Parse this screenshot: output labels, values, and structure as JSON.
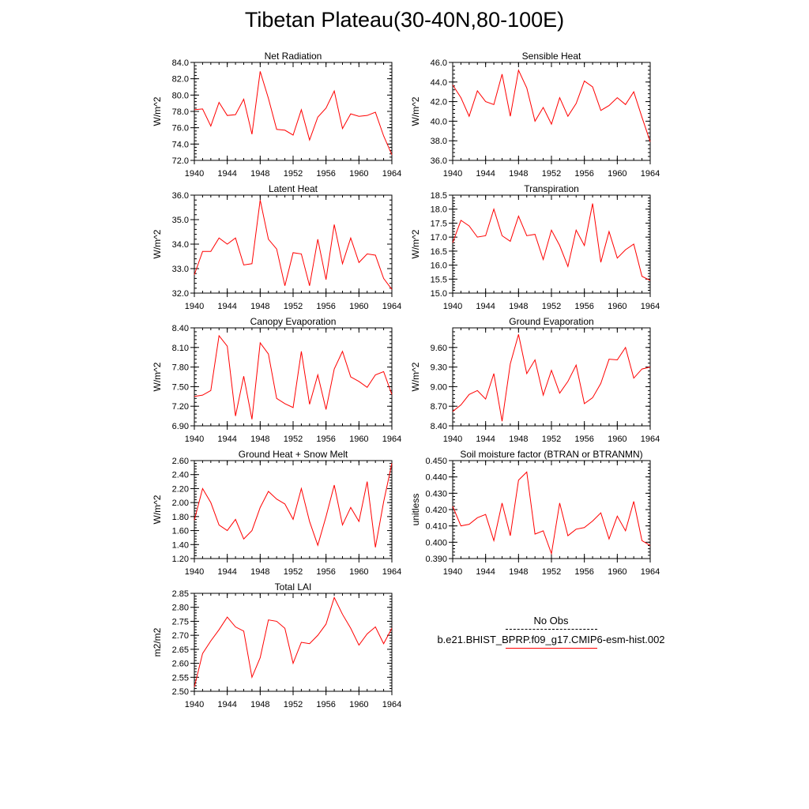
{
  "title": "Tibetan Plateau(30-40N,80-100E)",
  "legend": {
    "obs_label": "No Obs",
    "model_label": "b.e21.BHIST_BPRP.f09_g17.CMIP6-esm-hist.002",
    "obs_color": "#000000",
    "model_color": "#ff0000"
  },
  "chart_data": [
    {
      "type": "line",
      "title": "Net Radiation",
      "ylabel": "W/m^2",
      "ylim": [
        72.0,
        84.0
      ],
      "yticks": [
        "72.0",
        "74.0",
        "76.0",
        "78.0",
        "80.0",
        "82.0",
        "84.0"
      ],
      "xlim": [
        1940,
        1964
      ],
      "xticks": [
        "1940",
        "1944",
        "1948",
        "1952",
        "1956",
        "1960",
        "1964"
      ],
      "x": [
        1940,
        1941,
        1942,
        1943,
        1944,
        1945,
        1946,
        1947,
        1948,
        1949,
        1950,
        1951,
        1952,
        1953,
        1954,
        1955,
        1956,
        1957,
        1958,
        1959,
        1960,
        1961,
        1962,
        1963,
        1964
      ],
      "values": [
        78.2,
        78.3,
        76.2,
        79.1,
        77.5,
        77.6,
        79.5,
        75.2,
        82.9,
        79.6,
        75.8,
        75.7,
        75.1,
        78.2,
        74.5,
        77.3,
        78.4,
        80.5,
        75.9,
        77.7,
        77.4,
        77.5,
        77.9,
        75.0,
        72.7
      ]
    },
    {
      "type": "line",
      "title": "Sensible Heat",
      "ylabel": "W/m^2",
      "ylim": [
        36.0,
        46.0
      ],
      "yticks": [
        "36.0",
        "38.0",
        "40.0",
        "42.0",
        "44.0",
        "46.0"
      ],
      "xlim": [
        1940,
        1964
      ],
      "xticks": [
        "1940",
        "1944",
        "1948",
        "1952",
        "1956",
        "1960",
        "1964"
      ],
      "x": [
        1940,
        1941,
        1942,
        1943,
        1944,
        1945,
        1946,
        1947,
        1948,
        1949,
        1950,
        1951,
        1952,
        1953,
        1954,
        1955,
        1956,
        1957,
        1958,
        1959,
        1960,
        1961,
        1962,
        1963,
        1964
      ],
      "values": [
        43.7,
        42.4,
        40.5,
        43.1,
        42.0,
        41.7,
        44.8,
        40.5,
        45.2,
        43.4,
        40.0,
        41.4,
        39.7,
        42.4,
        40.5,
        41.8,
        44.1,
        43.5,
        41.1,
        41.6,
        42.4,
        41.7,
        43.0,
        40.4,
        37.9
      ]
    },
    {
      "type": "line",
      "title": "Latent Heat",
      "ylabel": "W/m^2",
      "ylim": [
        32.0,
        36.0
      ],
      "yticks": [
        "32.0",
        "33.0",
        "34.0",
        "35.0",
        "36.0"
      ],
      "xlim": [
        1940,
        1964
      ],
      "xticks": [
        "1940",
        "1944",
        "1948",
        "1952",
        "1956",
        "1960",
        "1964"
      ],
      "x": [
        1940,
        1941,
        1942,
        1943,
        1944,
        1945,
        1946,
        1947,
        1948,
        1949,
        1950,
        1951,
        1952,
        1953,
        1954,
        1955,
        1956,
        1957,
        1958,
        1959,
        1960,
        1961,
        1962,
        1963,
        1964
      ],
      "values": [
        32.75,
        33.7,
        33.7,
        34.25,
        34.0,
        34.25,
        33.15,
        33.2,
        35.8,
        34.2,
        33.8,
        32.3,
        33.65,
        33.6,
        32.3,
        34.2,
        32.55,
        34.8,
        33.2,
        34.25,
        33.25,
        33.6,
        33.55,
        32.6,
        32.15
      ]
    },
    {
      "type": "line",
      "title": "Transpiration",
      "ylabel": "W/m^2",
      "ylim": [
        15.0,
        18.5
      ],
      "yticks": [
        "15.0",
        "15.5",
        "16.0",
        "16.5",
        "17.0",
        "17.5",
        "18.0",
        "18.5"
      ],
      "xlim": [
        1940,
        1964
      ],
      "xticks": [
        "1940",
        "1944",
        "1948",
        "1952",
        "1956",
        "1960",
        "1964"
      ],
      "x": [
        1940,
        1941,
        1942,
        1943,
        1944,
        1945,
        1946,
        1947,
        1948,
        1949,
        1950,
        1951,
        1952,
        1953,
        1954,
        1955,
        1956,
        1957,
        1958,
        1959,
        1960,
        1961,
        1962,
        1963,
        1964
      ],
      "values": [
        16.8,
        17.6,
        17.4,
        17.0,
        17.05,
        18.0,
        17.05,
        16.85,
        17.75,
        17.05,
        17.1,
        16.2,
        17.25,
        16.7,
        15.95,
        17.25,
        16.7,
        18.2,
        16.1,
        17.2,
        16.25,
        16.55,
        16.75,
        15.6,
        15.45
      ]
    },
    {
      "type": "line",
      "title": "Canopy Evaporation",
      "ylabel": "W/m^2",
      "ylim": [
        6.9,
        8.4
      ],
      "yticks": [
        "6.90",
        "7.20",
        "7.50",
        "7.80",
        "8.10",
        "8.40"
      ],
      "xlim": [
        1940,
        1964
      ],
      "xticks": [
        "1940",
        "1944",
        "1948",
        "1952",
        "1956",
        "1960",
        "1964"
      ],
      "x": [
        1940,
        1941,
        1942,
        1943,
        1944,
        1945,
        1946,
        1947,
        1948,
        1949,
        1950,
        1951,
        1952,
        1953,
        1954,
        1955,
        1956,
        1957,
        1958,
        1959,
        1960,
        1961,
        1962,
        1963,
        1964
      ],
      "values": [
        7.35,
        7.37,
        7.44,
        8.28,
        8.12,
        7.05,
        7.66,
        7.0,
        8.17,
        8.0,
        7.32,
        7.24,
        7.18,
        8.04,
        7.23,
        7.68,
        7.15,
        7.77,
        8.04,
        7.65,
        7.58,
        7.49,
        7.68,
        7.73,
        7.38
      ]
    },
    {
      "type": "line",
      "title": "Ground Evaporation",
      "ylabel": "W/m^2",
      "ylim": [
        8.4,
        9.9
      ],
      "yticks": [
        "8.40",
        "8.70",
        "9.00",
        "9.30",
        "9.60"
      ],
      "xlim": [
        1940,
        1964
      ],
      "xticks": [
        "1940",
        "1944",
        "1948",
        "1952",
        "1956",
        "1960",
        "1964"
      ],
      "x": [
        1940,
        1941,
        1942,
        1943,
        1944,
        1945,
        1946,
        1947,
        1948,
        1949,
        1950,
        1951,
        1952,
        1953,
        1954,
        1955,
        1956,
        1957,
        1958,
        1959,
        1960,
        1961,
        1962,
        1963,
        1964
      ],
      "values": [
        8.62,
        8.72,
        8.88,
        8.94,
        8.81,
        9.2,
        8.47,
        9.35,
        9.8,
        9.2,
        9.41,
        8.87,
        9.25,
        8.9,
        9.08,
        9.33,
        8.74,
        8.83,
        9.05,
        9.42,
        9.41,
        9.6,
        9.13,
        9.27,
        9.3
      ]
    },
    {
      "type": "line",
      "title": "Ground Heat + Snow Melt",
      "ylabel": "W/m^2",
      "ylim": [
        1.2,
        2.6
      ],
      "yticks": [
        "1.20",
        "1.40",
        "1.60",
        "1.80",
        "2.00",
        "2.20",
        "2.40",
        "2.60"
      ],
      "xlim": [
        1940,
        1964
      ],
      "xticks": [
        "1940",
        "1944",
        "1948",
        "1952",
        "1956",
        "1960",
        "1964"
      ],
      "x": [
        1940,
        1941,
        1942,
        1943,
        1944,
        1945,
        1946,
        1947,
        1948,
        1949,
        1950,
        1951,
        1952,
        1953,
        1954,
        1955,
        1956,
        1957,
        1958,
        1959,
        1960,
        1961,
        1962,
        1963,
        1964
      ],
      "values": [
        1.75,
        2.2,
        2.0,
        1.68,
        1.6,
        1.76,
        1.48,
        1.6,
        1.93,
        2.16,
        2.05,
        1.98,
        1.76,
        2.2,
        1.73,
        1.39,
        1.8,
        2.25,
        1.68,
        1.93,
        1.73,
        2.3,
        1.36,
        2.01,
        2.56
      ]
    },
    {
      "type": "line",
      "title": "Soil moisture factor (BTRAN or BTRANMN)",
      "ylabel": "unitless",
      "ylim": [
        0.39,
        0.45
      ],
      "yticks": [
        "0.390",
        "0.400",
        "0.410",
        "0.420",
        "0.430",
        "0.440",
        "0.450"
      ],
      "xlim": [
        1940,
        1964
      ],
      "xticks": [
        "1940",
        "1944",
        "1948",
        "1952",
        "1956",
        "1960",
        "1964"
      ],
      "x": [
        1940,
        1941,
        1942,
        1943,
        1944,
        1945,
        1946,
        1947,
        1948,
        1949,
        1950,
        1951,
        1952,
        1953,
        1954,
        1955,
        1956,
        1957,
        1958,
        1959,
        1960,
        1961,
        1962,
        1963,
        1964
      ],
      "values": [
        0.422,
        0.41,
        0.411,
        0.415,
        0.417,
        0.401,
        0.424,
        0.404,
        0.438,
        0.443,
        0.405,
        0.407,
        0.393,
        0.424,
        0.404,
        0.408,
        0.409,
        0.413,
        0.418,
        0.402,
        0.416,
        0.407,
        0.425,
        0.401,
        0.398
      ]
    },
    {
      "type": "line",
      "title": "Total LAI",
      "ylabel": "m2/m2",
      "ylim": [
        2.5,
        2.85
      ],
      "yticks": [
        "2.50",
        "2.55",
        "2.60",
        "2.65",
        "2.70",
        "2.75",
        "2.80",
        "2.85"
      ],
      "xlim": [
        1940,
        1964
      ],
      "xticks": [
        "1940",
        "1944",
        "1948",
        "1952",
        "1956",
        "1960",
        "1964"
      ],
      "x": [
        1940,
        1941,
        1942,
        1943,
        1944,
        1945,
        1946,
        1947,
        1948,
        1949,
        1950,
        1951,
        1952,
        1953,
        1954,
        1955,
        1956,
        1957,
        1958,
        1959,
        1960,
        1961,
        1962,
        1963,
        1964
      ],
      "values": [
        2.515,
        2.635,
        2.68,
        2.72,
        2.765,
        2.73,
        2.715,
        2.55,
        2.62,
        2.755,
        2.75,
        2.725,
        2.6,
        2.675,
        2.67,
        2.7,
        2.74,
        2.835,
        2.775,
        2.725,
        2.665,
        2.705,
        2.73,
        2.67,
        2.725
      ]
    }
  ]
}
